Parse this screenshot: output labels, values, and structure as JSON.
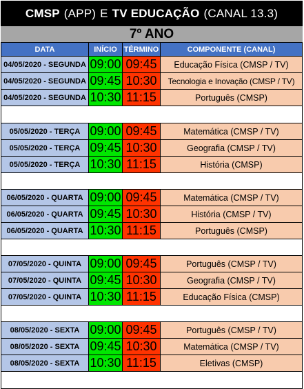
{
  "title": {
    "part1_bold": "CMSP",
    "part2": "(APP)",
    "part3": "E",
    "part4_bold": "TV EDUCAÇÃO",
    "part5": "(CANAL 13.3)"
  },
  "grade": "7º ANO",
  "headers": {
    "date": "DATA",
    "start": "INÍCIO",
    "end": "TÉRMINO",
    "component": "COMPONENTE (CANAL)"
  },
  "colors": {
    "title_bg": "#000000",
    "grade_bg": "#a6a6a6",
    "header_bg": "#4472c4",
    "date_bg": "#b4c6e7",
    "start_bg": "#00e600",
    "end_bg": "#ff3300",
    "component_bg": "#f8cbad"
  },
  "days": [
    {
      "rows": [
        {
          "date": "04/05/2020 - SEGUNDA",
          "start": "09:00",
          "end": "09:45",
          "component": "Educação Física (CMSP / TV)"
        },
        {
          "date": "04/05/2020 - SEGUNDA",
          "start": "09:45",
          "end": "10:30",
          "component": "Tecnologia e Inovação (CMSP / TV)"
        },
        {
          "date": "04/05/2020 - SEGUNDA",
          "start": "10:30",
          "end": "11:15",
          "component": "Português (CMSP)"
        }
      ]
    },
    {
      "rows": [
        {
          "date": "05/05/2020 - TERÇA",
          "start": "09:00",
          "end": "09:45",
          "component": "Matemática (CMSP / TV)"
        },
        {
          "date": "05/05/2020 - TERÇA",
          "start": "09:45",
          "end": "10:30",
          "component": "Geografia (CMSP / TV)"
        },
        {
          "date": "05/05/2020 - TERÇA",
          "start": "10:30",
          "end": "11:15",
          "component": "História (CMSP)"
        }
      ]
    },
    {
      "rows": [
        {
          "date": "06/05/2020 - QUARTA",
          "start": "09:00",
          "end": "09:45",
          "component": "Matemática (CMSP / TV)"
        },
        {
          "date": "06/05/2020 - QUARTA",
          "start": "09:45",
          "end": "10:30",
          "component": "História (CMSP / TV)"
        },
        {
          "date": "06/05/2020 - QUARTA",
          "start": "10:30",
          "end": "11:15",
          "component": "Português (CMSP)"
        }
      ]
    },
    {
      "rows": [
        {
          "date": "07/05/2020 - QUINTA",
          "start": "09:00",
          "end": "09:45",
          "component": "Português (CMSP / TV)"
        },
        {
          "date": "07/05/2020 - QUINTA",
          "start": "09:45",
          "end": "10:30",
          "component": "Geografia (CMSP / TV)"
        },
        {
          "date": "07/05/2020 - QUINTA",
          "start": "10:30",
          "end": "11:15",
          "component": "Educação Física (CMSP)"
        }
      ]
    },
    {
      "rows": [
        {
          "date": "08/05/2020 - SEXTA",
          "start": "09:00",
          "end": "09:45",
          "component": "Português (CMSP / TV)"
        },
        {
          "date": "08/05/2020 - SEXTA",
          "start": "09:45",
          "end": "10:30",
          "component": "Matemática (CMSP / TV)"
        },
        {
          "date": "08/05/2020 - SEXTA",
          "start": "10:30",
          "end": "11:15",
          "component": "Eletivas (CMSP)"
        }
      ]
    }
  ]
}
